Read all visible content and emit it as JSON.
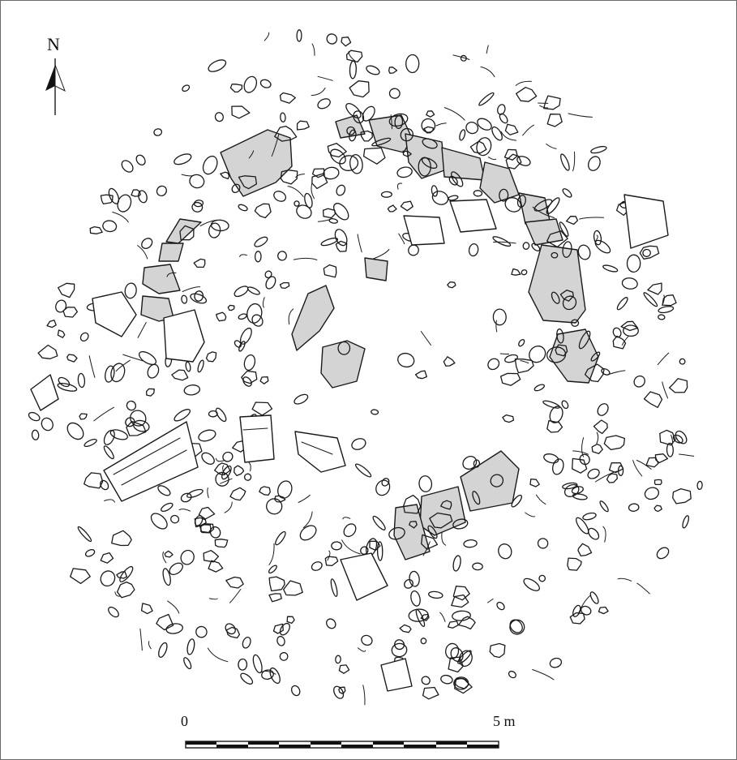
{
  "north_arrow": {
    "label": "N"
  },
  "scale_bar": {
    "start_label": "0",
    "end_label": "5 m"
  },
  "colors": {
    "orthostat_fill": "#d4d4d4",
    "stone_outline": "#1a1a1a",
    "background": "#ffffff"
  }
}
